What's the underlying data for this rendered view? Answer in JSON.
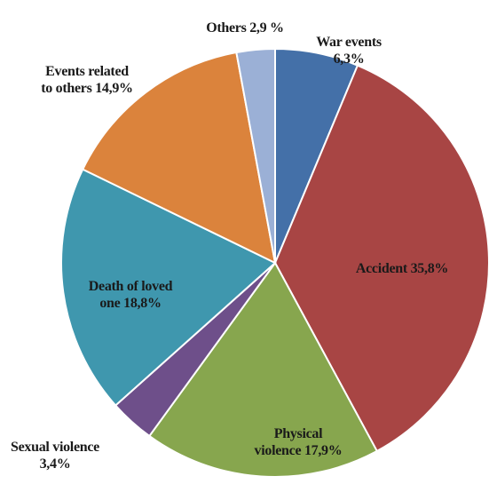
{
  "chart_data": {
    "type": "pie",
    "title": "",
    "slices": [
      {
        "name": "War events",
        "value": 6.3,
        "color": "#4470A8",
        "label_lines": [
          "War events",
          "6,3%"
        ]
      },
      {
        "name": "Accident",
        "value": 35.8,
        "color": "#A84544",
        "label_lines": [
          "Accident 35,8%"
        ]
      },
      {
        "name": "Physical violence",
        "value": 17.9,
        "color": "#87A64E",
        "label_lines": [
          "Physical",
          "violence 17,9%"
        ]
      },
      {
        "name": "Sexual violence",
        "value": 3.4,
        "color": "#6E4F8A",
        "label_lines": [
          "Sexual violence",
          "3,4%"
        ]
      },
      {
        "name": "Death of loved one",
        "value": 18.8,
        "color": "#3F97AE",
        "label_lines": [
          "Death of loved",
          "one 18,8%"
        ]
      },
      {
        "name": "Events related to others",
        "value": 14.9,
        "color": "#DB833C",
        "label_lines": [
          "Events related",
          "to others 14,9%"
        ]
      },
      {
        "name": "Others",
        "value": 2.9,
        "color": "#9BB0D6",
        "label_lines": [
          "Others 2,9 %"
        ]
      }
    ],
    "start_angle": "top",
    "direction": "clockwise",
    "legend": "none"
  }
}
